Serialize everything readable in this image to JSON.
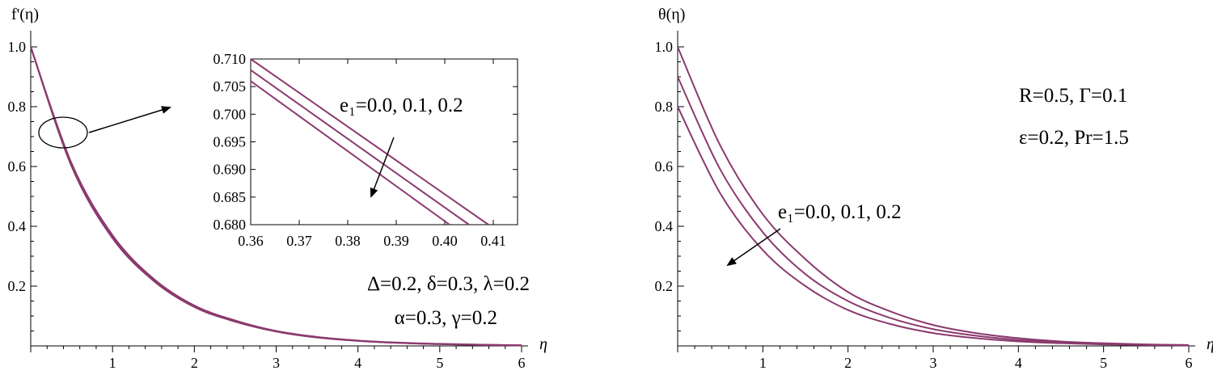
{
  "chart_data": [
    {
      "type": "line",
      "title": "",
      "ylabel": "f'(η)",
      "xlabel": "η",
      "xlim": [
        0,
        6
      ],
      "ylim": [
        0,
        1.0
      ],
      "xticks": [
        "1",
        "2",
        "3",
        "4",
        "5",
        "6"
      ],
      "yticks": [
        "0.2",
        "0.4",
        "0.6",
        "0.8",
        "1.0"
      ],
      "series": [
        {
          "x": [
            0,
            0.5,
            1,
            1.5,
            2,
            2.5,
            3,
            3.5,
            4,
            4.5,
            5,
            5.5,
            6
          ],
          "values": [
            1.0,
            0.61,
            0.37,
            0.225,
            0.135,
            0.085,
            0.05,
            0.03,
            0.018,
            0.011,
            0.007,
            0.004,
            0.002
          ]
        },
        {
          "x": [
            0,
            0.5,
            1,
            1.5,
            2,
            2.5,
            3,
            3.5,
            4,
            4.5,
            5,
            5.5,
            6
          ],
          "values": [
            1.0,
            0.605,
            0.365,
            0.222,
            0.133,
            0.083,
            0.049,
            0.029,
            0.017,
            0.01,
            0.006,
            0.004,
            0.002
          ]
        },
        {
          "x": [
            0,
            0.5,
            1,
            1.5,
            2,
            2.5,
            3,
            3.5,
            4,
            4.5,
            5,
            5.5,
            6
          ],
          "values": [
            1.0,
            0.6,
            0.36,
            0.218,
            0.13,
            0.081,
            0.048,
            0.028,
            0.017,
            0.01,
            0.006,
            0.003,
            0.002
          ]
        }
      ],
      "annotations": {
        "param_label": "e₁=0.0, 0.1, 0.2",
        "params_line1": "Δ=0.2, δ=0.3, λ=0.2",
        "params_line2": "α=0.3, γ=0.2"
      },
      "inset": {
        "type": "line",
        "xlim": [
          0.36,
          0.415
        ],
        "ylim": [
          0.68,
          0.71
        ],
        "xticks": [
          "0.36",
          "0.37",
          "0.38",
          "0.39",
          "0.40",
          "0.41"
        ],
        "yticks": [
          "0.680",
          "0.685",
          "0.690",
          "0.695",
          "0.700",
          "0.705",
          "0.710"
        ],
        "series": [
          {
            "x": [
              0.36,
              0.409
            ],
            "values": [
              0.71,
              0.68
            ]
          },
          {
            "x": [
              0.36,
              0.405
            ],
            "values": [
              0.708,
              0.68
            ]
          },
          {
            "x": [
              0.36,
              0.401
            ],
            "values": [
              0.706,
              0.68
            ]
          }
        ]
      }
    },
    {
      "type": "line",
      "title": "",
      "ylabel": "θ(η)",
      "xlabel": "η",
      "xlim": [
        0,
        6
      ],
      "ylim": [
        0,
        1.0
      ],
      "xticks": [
        "1",
        "2",
        "3",
        "4",
        "5",
        "6"
      ],
      "yticks": [
        "0.2",
        "0.4",
        "0.6",
        "0.8",
        "1.0"
      ],
      "series": [
        {
          "x": [
            0,
            0.5,
            1,
            1.5,
            2,
            2.5,
            3,
            3.5,
            4,
            4.5,
            5,
            5.5,
            6
          ],
          "values": [
            1.0,
            0.67,
            0.44,
            0.29,
            0.18,
            0.115,
            0.07,
            0.043,
            0.026,
            0.015,
            0.009,
            0.005,
            0.003
          ]
        },
        {
          "x": [
            0,
            0.5,
            1,
            1.5,
            2,
            2.5,
            3,
            3.5,
            4,
            4.5,
            5,
            5.5,
            6
          ],
          "values": [
            0.9,
            0.59,
            0.38,
            0.24,
            0.15,
            0.093,
            0.056,
            0.034,
            0.02,
            0.012,
            0.007,
            0.004,
            0.002
          ]
        },
        {
          "x": [
            0,
            0.5,
            1,
            1.5,
            2,
            2.5,
            3,
            3.5,
            4,
            4.5,
            5,
            5.5,
            6
          ],
          "values": [
            0.8,
            0.51,
            0.32,
            0.2,
            0.12,
            0.073,
            0.043,
            0.026,
            0.015,
            0.009,
            0.005,
            0.003,
            0.002
          ]
        }
      ],
      "annotations": {
        "param_label": "e₁=0.0, 0.1, 0.2",
        "params_line1": "R=0.5, Γ=0.1",
        "params_line2": "ε=0.2, Pr=1.5"
      }
    }
  ]
}
